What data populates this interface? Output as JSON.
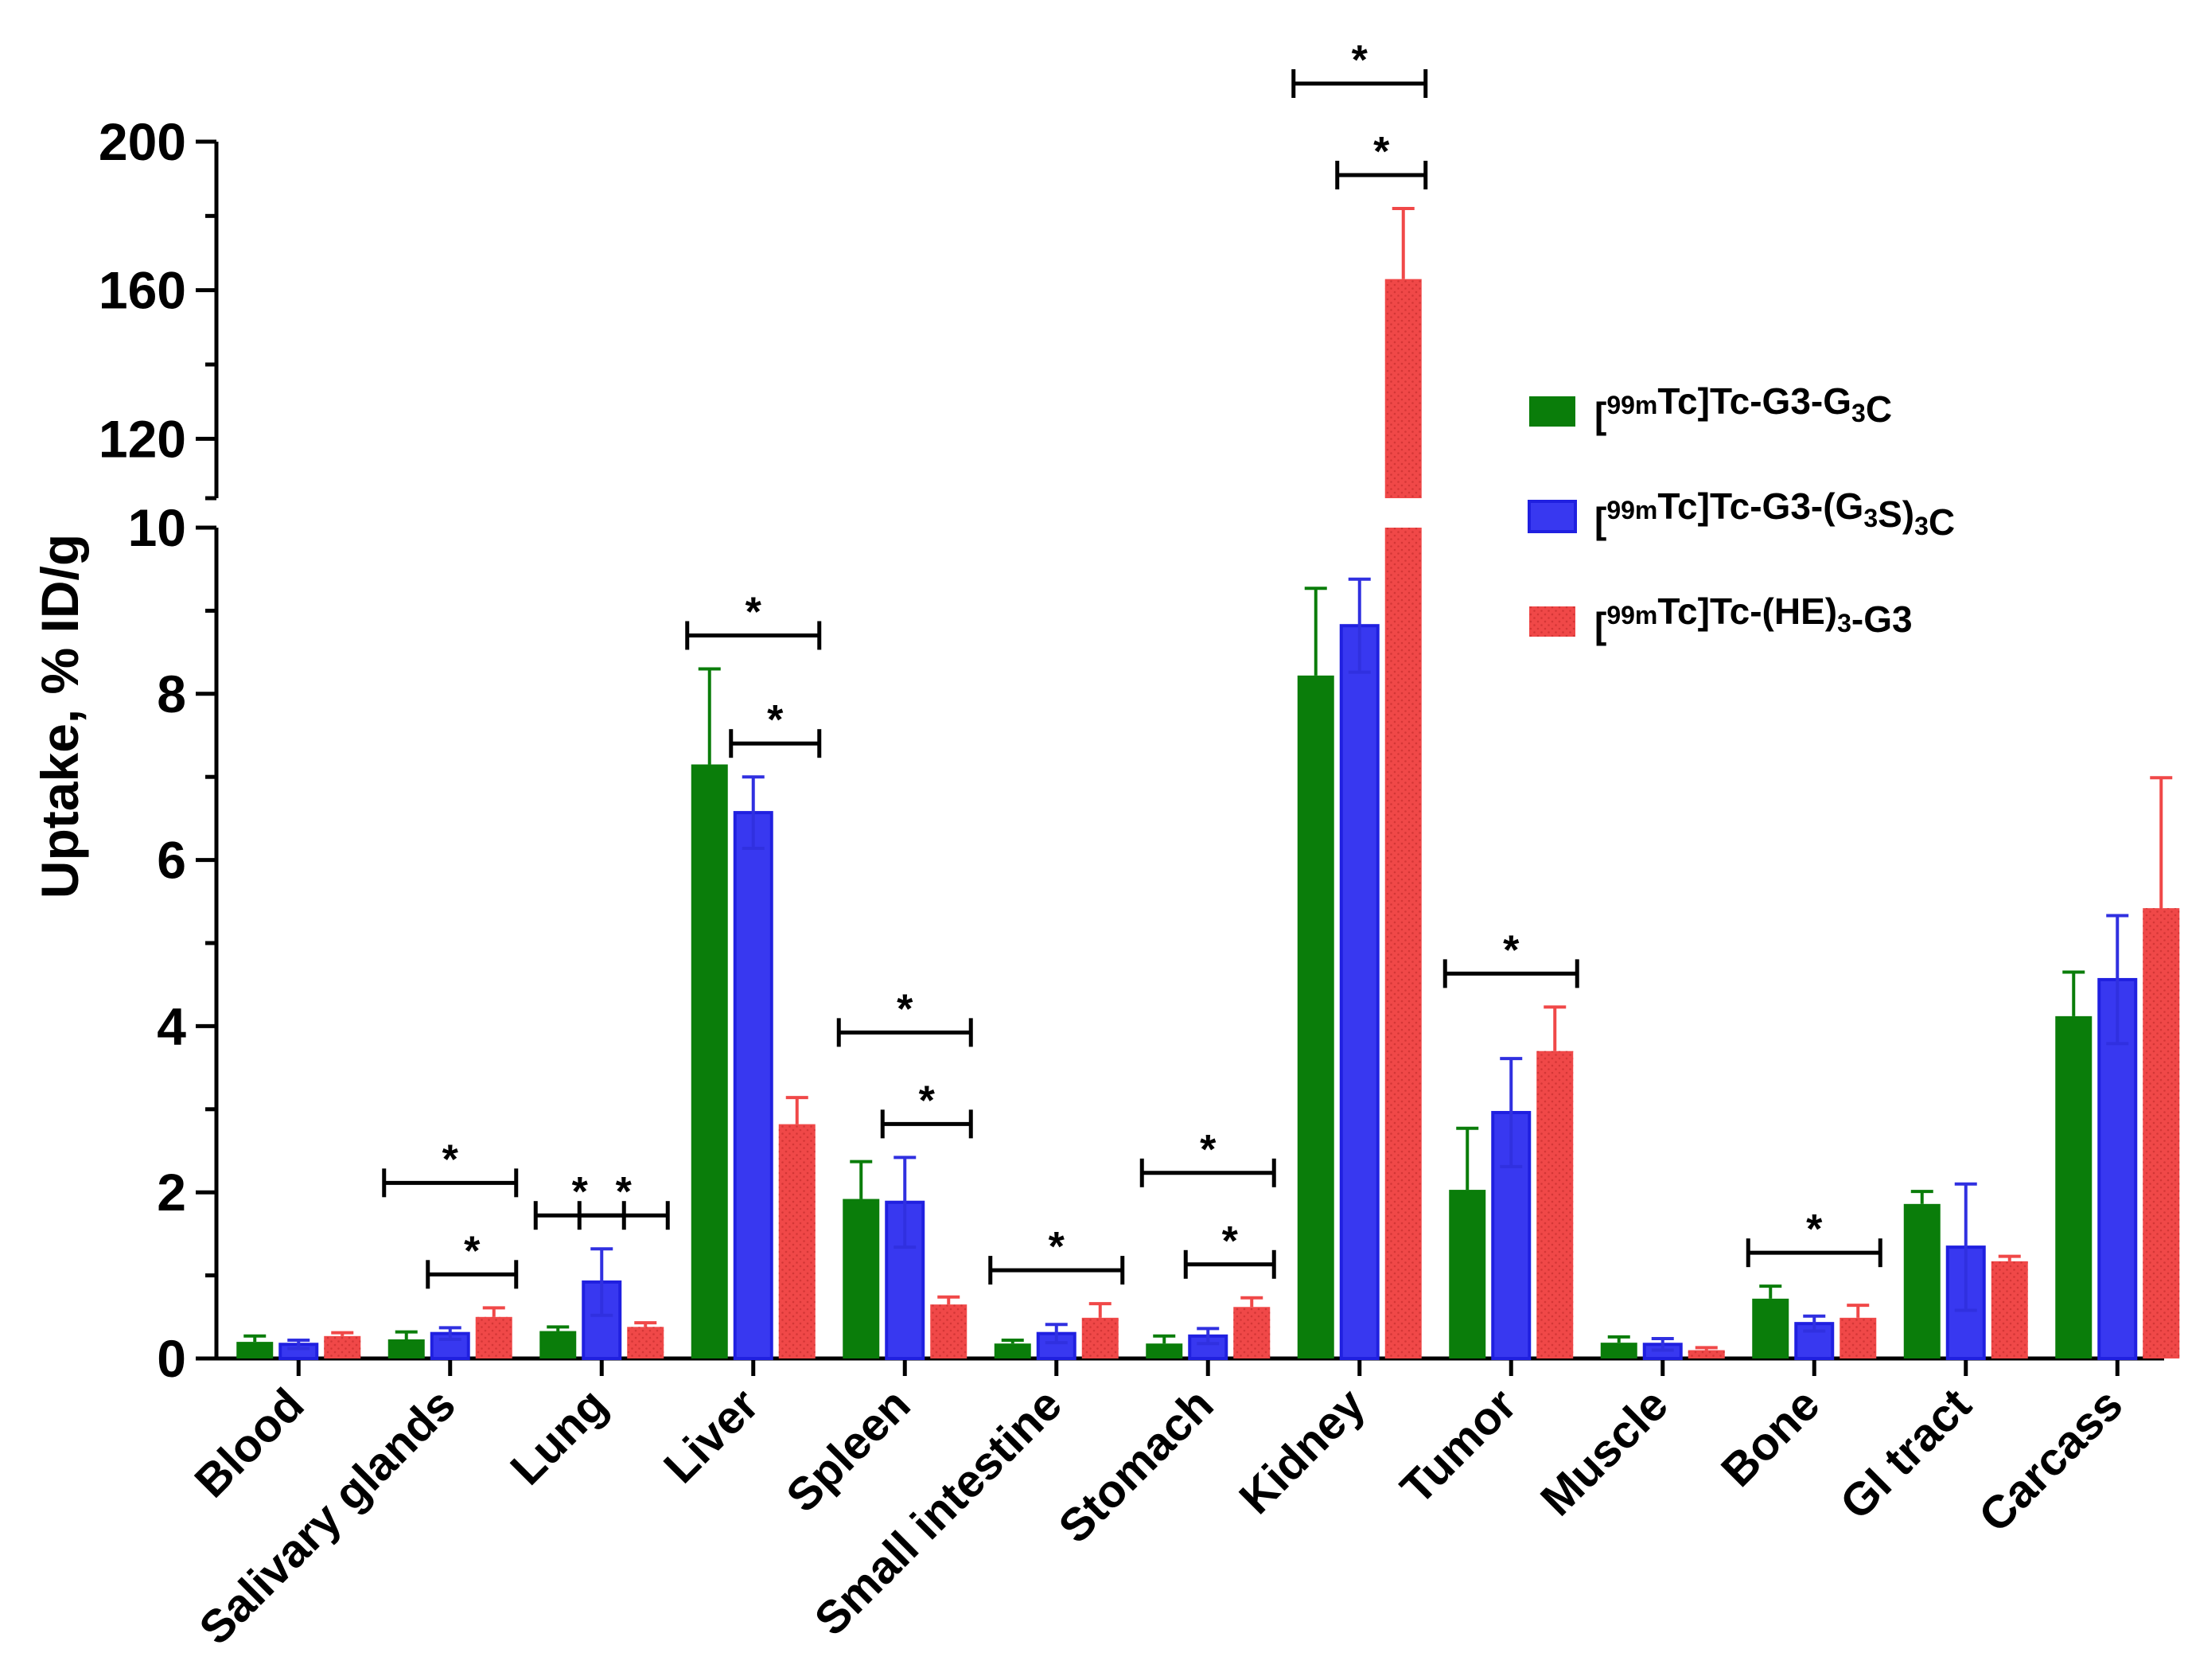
{
  "chart_data": {
    "type": "bar",
    "ylabel": "Uptake, % ID/g",
    "xlabel": "",
    "axis_break": true,
    "ylim_lower": [
      0,
      10
    ],
    "ylim_upper": [
      104,
      200
    ],
    "yticks_lower": [
      "0",
      "2",
      "4",
      "6",
      "8",
      "10"
    ],
    "yticks_upper": [
      "120",
      "160",
      "200"
    ],
    "categories": [
      "Blood",
      "Salivary glands",
      "Lung",
      "Liver",
      "Spleen",
      "Small intestine",
      "Stomach",
      "Kidney",
      "Tumor",
      "Muscle",
      "Bone",
      "GI tract",
      "Carcass"
    ],
    "series": [
      {
        "name": "[99mTc]Tc-G3-G3C",
        "legend_parts": [
          {
            "t": "["
          },
          {
            "t": "99m",
            "sup": true
          },
          {
            "t": "Tc]Tc-G3-G"
          },
          {
            "t": "3",
            "sub": true
          },
          {
            "t": "C"
          }
        ],
        "color": "#0a7d0a",
        "values": [
          0.2,
          0.23,
          0.33,
          7.15,
          1.92,
          0.18,
          0.18,
          8.22,
          2.03,
          0.19,
          0.72,
          1.86,
          4.12
        ],
        "errors": [
          0.07,
          0.09,
          0.05,
          1.15,
          0.45,
          0.04,
          0.09,
          1.05,
          0.74,
          0.07,
          0.15,
          0.15,
          0.53
        ]
      },
      {
        "name": "[99mTc]Tc-G3-(G3S)3C",
        "legend_parts": [
          {
            "t": "["
          },
          {
            "t": "99m",
            "sup": true
          },
          {
            "t": "Tc]Tc-G3-(G"
          },
          {
            "t": "3",
            "sub": true
          },
          {
            "t": "S)"
          },
          {
            "t": "3",
            "sub": true
          },
          {
            "t": "C"
          }
        ],
        "color": "#3838f0",
        "values": [
          0.17,
          0.3,
          0.92,
          6.57,
          1.88,
          0.3,
          0.27,
          8.82,
          2.96,
          0.17,
          0.42,
          1.34,
          4.56
        ],
        "errors": [
          0.05,
          0.07,
          0.4,
          0.43,
          0.54,
          0.11,
          0.09,
          0.56,
          0.65,
          0.07,
          0.09,
          0.76,
          0.77
        ]
      },
      {
        "name": "[99mTc]Tc-(HE)3-G3",
        "legend_parts": [
          {
            "t": "["
          },
          {
            "t": "99m",
            "sup": true
          },
          {
            "t": "Tc]Tc-(HE)"
          },
          {
            "t": "3",
            "sub": true
          },
          {
            "t": "-G3"
          }
        ],
        "color": "#f04848",
        "values": [
          0.27,
          0.5,
          0.38,
          2.82,
          0.65,
          0.49,
          0.62,
          163.0,
          3.7,
          0.1,
          0.49,
          1.17,
          5.42
        ],
        "errors": [
          0.04,
          0.11,
          0.05,
          0.32,
          0.09,
          0.17,
          0.11,
          19.0,
          0.53,
          0.03,
          0.15,
          0.06,
          1.57
        ]
      }
    ],
    "significance": [
      {
        "category": "Salivary glands",
        "pair": [
          0,
          2
        ],
        "label": "*"
      },
      {
        "category": "Salivary glands",
        "pair": [
          1,
          2
        ],
        "label": "*"
      },
      {
        "category": "Lung",
        "pair": [
          0,
          1
        ],
        "label": "*"
      },
      {
        "category": "Lung",
        "pair": [
          1,
          2
        ],
        "label": "*"
      },
      {
        "category": "Liver",
        "pair": [
          0,
          2
        ],
        "label": "*"
      },
      {
        "category": "Liver",
        "pair": [
          1,
          2
        ],
        "label": "*"
      },
      {
        "category": "Spleen",
        "pair": [
          0,
          2
        ],
        "label": "*"
      },
      {
        "category": "Spleen",
        "pair": [
          1,
          2
        ],
        "label": "*"
      },
      {
        "category": "Small intestine",
        "pair": [
          0,
          2
        ],
        "label": "*"
      },
      {
        "category": "Stomach",
        "pair": [
          0,
          2
        ],
        "label": "*"
      },
      {
        "category": "Stomach",
        "pair": [
          1,
          2
        ],
        "label": "*"
      },
      {
        "category": "Kidney",
        "pair": [
          0,
          2
        ],
        "label": "*"
      },
      {
        "category": "Kidney",
        "pair": [
          1,
          2
        ],
        "label": "*"
      },
      {
        "category": "Tumor",
        "pair": [
          0,
          2
        ],
        "label": "*"
      },
      {
        "category": "Bone",
        "pair": [
          0,
          2
        ],
        "label": "*"
      }
    ],
    "legend_position": "right"
  }
}
